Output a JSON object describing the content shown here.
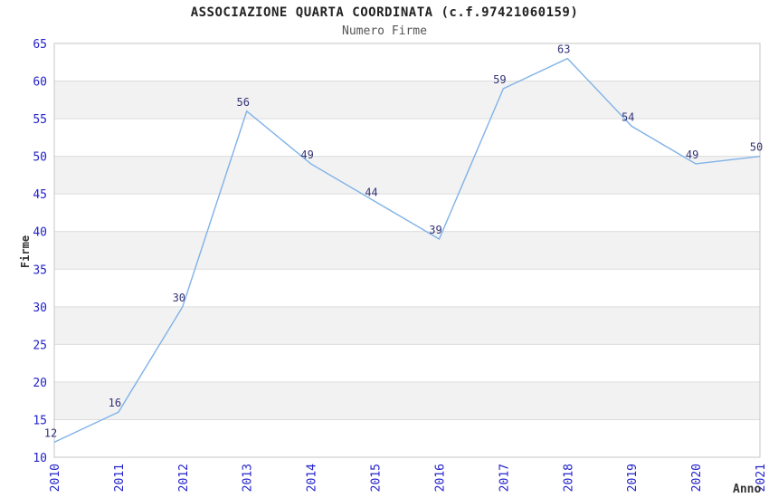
{
  "chart_data": {
    "type": "line",
    "title": "ASSOCIAZIONE QUARTA COORDINATA (c.f.97421060159)",
    "subtitle": "Numero Firme",
    "xlabel": "Anno",
    "ylabel": "Firme",
    "categories": [
      "2010",
      "2011",
      "2012",
      "2013",
      "2014",
      "2015",
      "2016",
      "2017",
      "2018",
      "2019",
      "2020",
      "2021"
    ],
    "values": [
      12,
      16,
      30,
      56,
      49,
      44,
      39,
      59,
      63,
      54,
      49,
      50
    ],
    "ylim": [
      10,
      65
    ],
    "ytick_step": 5,
    "yticks": [
      10,
      15,
      20,
      25,
      30,
      35,
      40,
      45,
      50,
      55,
      60,
      65
    ],
    "grid": "horizontal-bands-alternating",
    "legend": "none",
    "point_labels_shown": true,
    "colors": {
      "line": "#7fb2e8",
      "tick_label": "#2222cc",
      "point_label": "#333377",
      "band_gray": "#f2f2f2",
      "band_white": "#ffffff",
      "gridline": "#dcdcdc",
      "border": "#c5c5c5",
      "title": "#222222",
      "subtitle": "#555555",
      "axis_label": "#333333"
    }
  }
}
